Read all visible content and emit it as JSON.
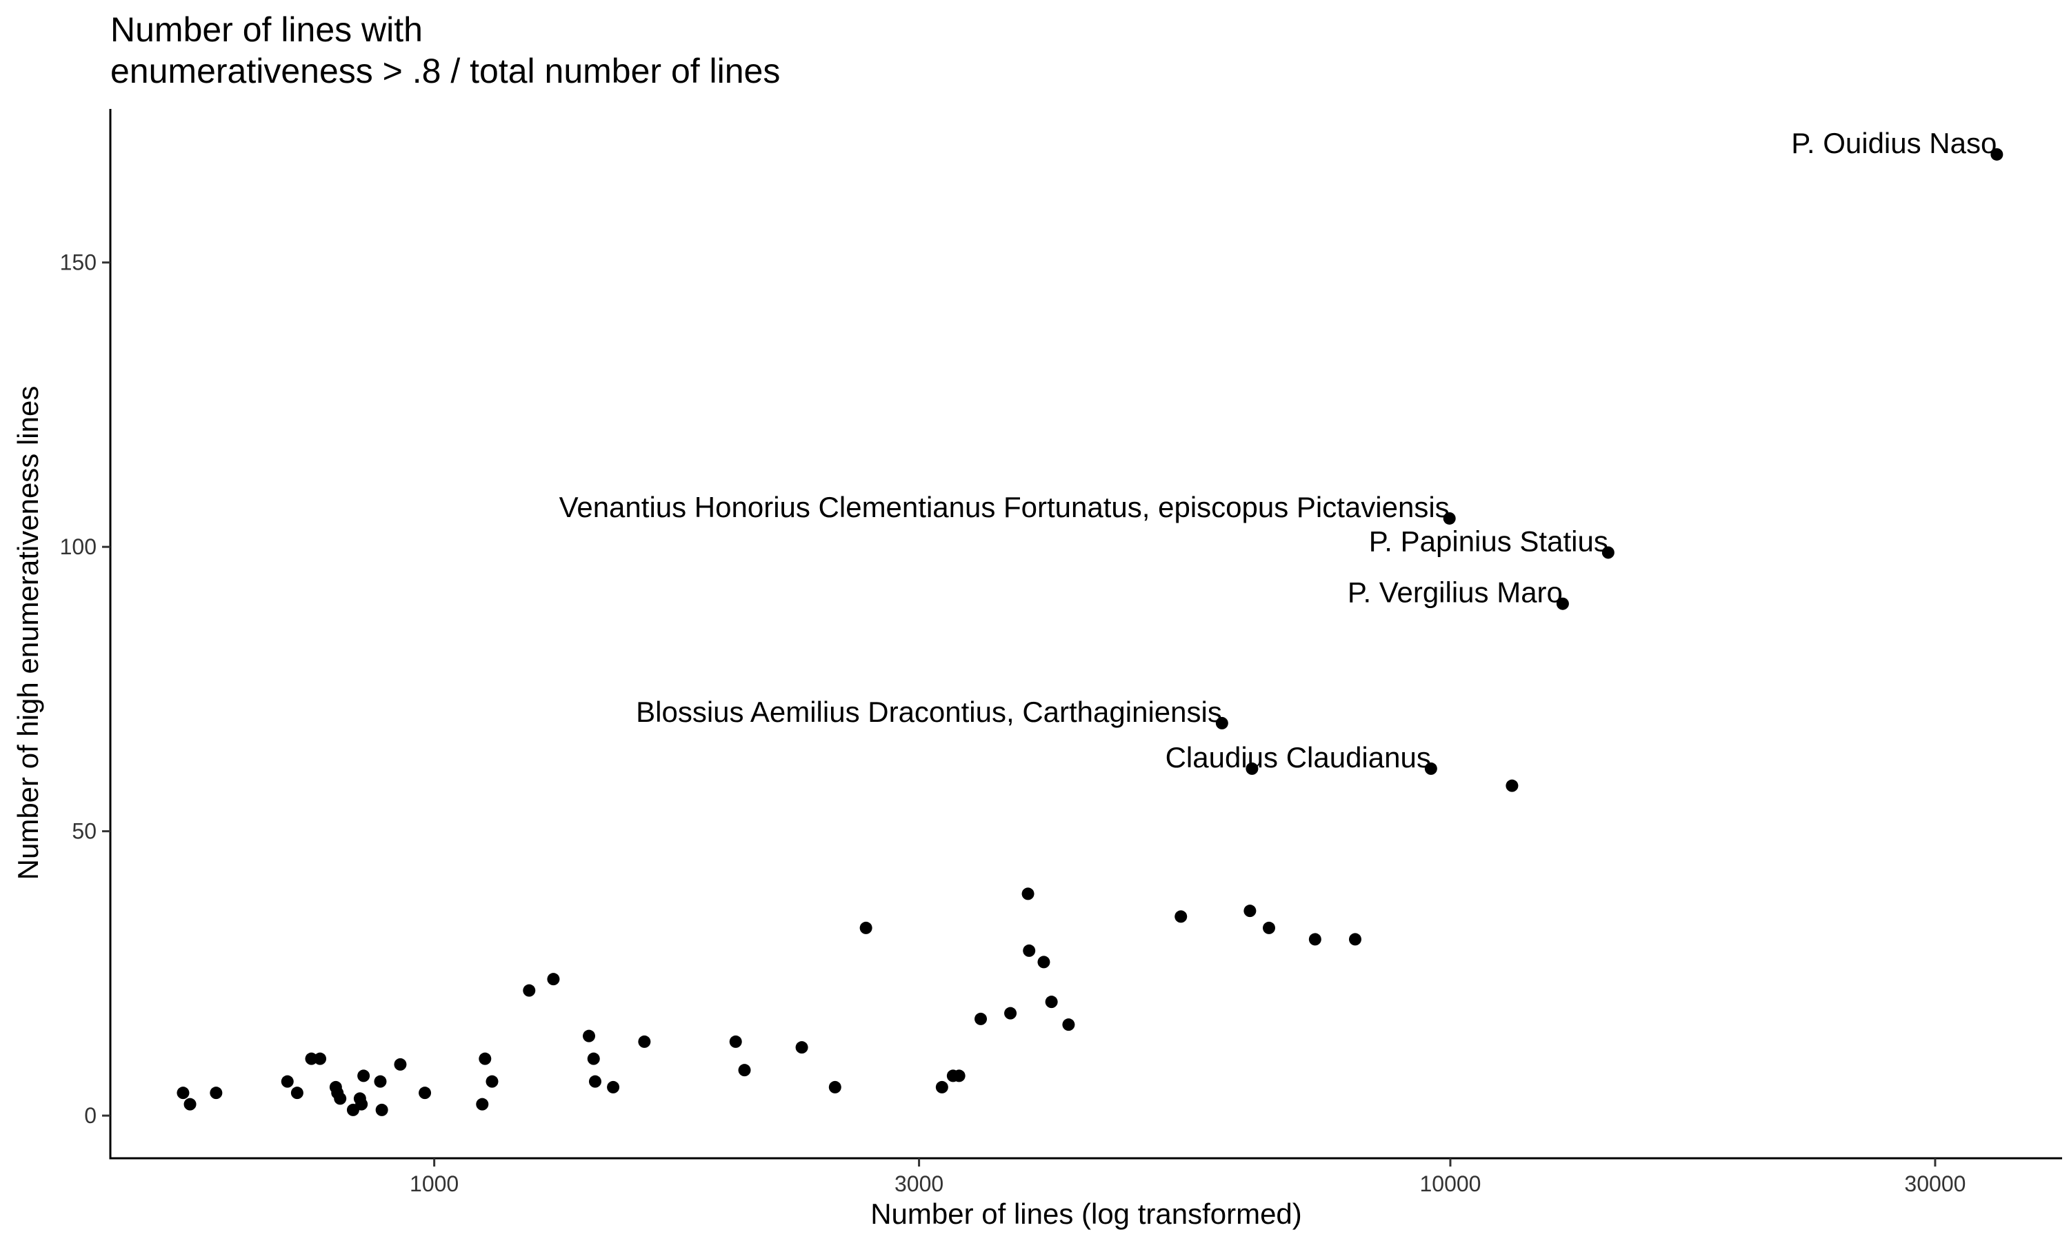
{
  "chart_data": {
    "type": "scatter",
    "title_lines": [
      "Number of lines with",
      "enumerativeness > .8 / total number of lines"
    ],
    "xlabel": "Number of lines (log transformed)",
    "ylabel": "Number of high enumerativeness lines",
    "x_scale": "log10",
    "xlim": [
      480,
      40000
    ],
    "ylim": [
      -7.5,
      177
    ],
    "x_ticks": [
      {
        "value": 1000,
        "label": "1000"
      },
      {
        "value": 3000,
        "label": "3000"
      },
      {
        "value": 10000,
        "label": "10000"
      },
      {
        "value": 30000,
        "label": "30000"
      }
    ],
    "y_ticks": [
      {
        "value": 0,
        "label": "0"
      },
      {
        "value": 50,
        "label": "50"
      },
      {
        "value": 100,
        "label": "100"
      },
      {
        "value": 150,
        "label": "150"
      }
    ],
    "grid": false,
    "point_color": "#000000",
    "points": [
      {
        "x": 34500,
        "y": 169,
        "label": "P. Ouidius Naso"
      },
      {
        "x": 9980,
        "y": 105,
        "label": "Venantius Honorius Clementianus Fortunatus, episcopus Pictaviensis"
      },
      {
        "x": 14300,
        "y": 99,
        "label": "P. Papinius Statius"
      },
      {
        "x": 12900,
        "y": 90,
        "label": "P. Vergilius Maro"
      },
      {
        "x": 5960,
        "y": 69,
        "label": "Blossius Aemilius Dracontius, Carthaginiensis"
      },
      {
        "x": 9570,
        "y": 61,
        "label": "Claudius Claudianus"
      },
      {
        "x": 6380,
        "y": 61
      },
      {
        "x": 11500,
        "y": 58
      },
      {
        "x": 566,
        "y": 4
      },
      {
        "x": 575,
        "y": 2
      },
      {
        "x": 610,
        "y": 4
      },
      {
        "x": 717,
        "y": 6
      },
      {
        "x": 733,
        "y": 4
      },
      {
        "x": 757,
        "y": 10
      },
      {
        "x": 772,
        "y": 10
      },
      {
        "x": 800,
        "y": 5
      },
      {
        "x": 803,
        "y": 4
      },
      {
        "x": 808,
        "y": 3
      },
      {
        "x": 832,
        "y": 1
      },
      {
        "x": 845,
        "y": 3
      },
      {
        "x": 848,
        "y": 2
      },
      {
        "x": 852,
        "y": 7
      },
      {
        "x": 885,
        "y": 6
      },
      {
        "x": 888,
        "y": 1
      },
      {
        "x": 926,
        "y": 9
      },
      {
        "x": 979,
        "y": 4
      },
      {
        "x": 1115,
        "y": 2
      },
      {
        "x": 1122,
        "y": 10
      },
      {
        "x": 1140,
        "y": 6
      },
      {
        "x": 1240,
        "y": 22
      },
      {
        "x": 1310,
        "y": 24
      },
      {
        "x": 1420,
        "y": 14
      },
      {
        "x": 1435,
        "y": 10
      },
      {
        "x": 1440,
        "y": 6
      },
      {
        "x": 1500,
        "y": 5
      },
      {
        "x": 1610,
        "y": 13
      },
      {
        "x": 1980,
        "y": 13
      },
      {
        "x": 2020,
        "y": 8
      },
      {
        "x": 2300,
        "y": 12
      },
      {
        "x": 2480,
        "y": 5
      },
      {
        "x": 2660,
        "y": 33
      },
      {
        "x": 3160,
        "y": 5
      },
      {
        "x": 3240,
        "y": 7
      },
      {
        "x": 3285,
        "y": 7
      },
      {
        "x": 3450,
        "y": 17
      },
      {
        "x": 3690,
        "y": 18
      },
      {
        "x": 3840,
        "y": 39
      },
      {
        "x": 3850,
        "y": 29
      },
      {
        "x": 3980,
        "y": 27
      },
      {
        "x": 4050,
        "y": 20
      },
      {
        "x": 4210,
        "y": 16
      },
      {
        "x": 5430,
        "y": 35
      },
      {
        "x": 6350,
        "y": 36
      },
      {
        "x": 6630,
        "y": 33
      },
      {
        "x": 7360,
        "y": 31
      },
      {
        "x": 8060,
        "y": 31
      }
    ]
  }
}
